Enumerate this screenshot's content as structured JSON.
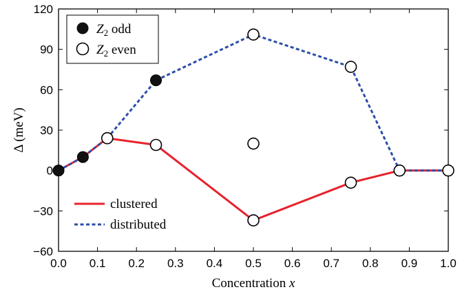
{
  "chart_data": {
    "type": "line",
    "xlabel": "Concentration x",
    "xlabel_parts": {
      "text": "Concentration ",
      "var": "x"
    },
    "ylabel": "Δ (meV)",
    "xlim": [
      0,
      1
    ],
    "ylim": [
      -60,
      120
    ],
    "xticks": [
      "0.0",
      "0.1",
      "0.2",
      "0.3",
      "0.4",
      "0.5",
      "0.6",
      "0.7",
      "0.8",
      "0.9",
      "1.0"
    ],
    "xtick_values": [
      0,
      0.1,
      0.2,
      0.3,
      0.4,
      0.5,
      0.6,
      0.7,
      0.8,
      0.9,
      1.0
    ],
    "yticks": [
      "−60",
      "−30",
      "0",
      "30",
      "60",
      "90",
      "120"
    ],
    "ytick_values": [
      -60,
      -30,
      0,
      30,
      60,
      90,
      120
    ],
    "grid": false,
    "series": [
      {
        "name": "clustered",
        "color": "#e8212b",
        "style": "solid",
        "x": [
          0,
          0.0625,
          0.125,
          0.25,
          0.5,
          0.75,
          0.875,
          1.0
        ],
        "y": [
          0,
          10,
          24,
          19,
          -37,
          -9,
          0,
          0
        ]
      },
      {
        "name": "distributed",
        "color": "#2b4ea8",
        "style": "dashed",
        "x": [
          0,
          0.0625,
          0.125,
          0.25,
          0.5,
          0.75,
          0.875,
          1.0
        ],
        "y": [
          0,
          10,
          24,
          67,
          101,
          77,
          0,
          0
        ]
      }
    ],
    "markers": {
      "odd": [
        {
          "x": 0,
          "y": 0
        },
        {
          "x": 0.0625,
          "y": 10
        },
        {
          "x": 0.25,
          "y": 67
        }
      ],
      "even": [
        {
          "x": 0.125,
          "y": 24
        },
        {
          "x": 0.25,
          "y": 19
        },
        {
          "x": 0.5,
          "y": 101
        },
        {
          "x": 0.5,
          "y": 20
        },
        {
          "x": 0.5,
          "y": -37
        },
        {
          "x": 0.75,
          "y": 77
        },
        {
          "x": 0.75,
          "y": -9
        },
        {
          "x": 0.875,
          "y": 0
        },
        {
          "x": 1.0,
          "y": 0
        }
      ]
    },
    "legend_markers": {
      "position": "top-left",
      "entries": [
        {
          "marker": "filled-circle",
          "label": "Z2 odd",
          "symbol": "Z",
          "sub": "2",
          "rest": " odd"
        },
        {
          "marker": "open-circle",
          "label": "Z2 even",
          "symbol": "Z",
          "sub": "2",
          "rest": " even"
        }
      ]
    },
    "legend_lines": {
      "position": "lower-left",
      "entries": [
        {
          "label": "clustered"
        },
        {
          "label": "distributed"
        }
      ]
    }
  }
}
